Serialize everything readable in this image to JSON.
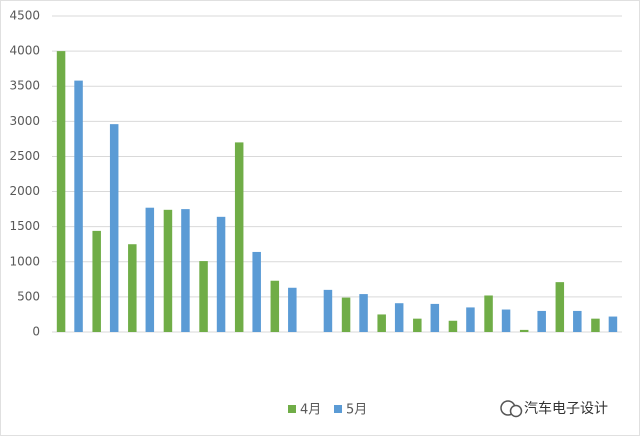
{
  "chart_data": {
    "type": "bar",
    "categories": [
      null,
      null,
      null,
      null,
      null,
      null,
      null,
      null,
      null,
      null,
      null,
      null,
      null,
      null,
      null,
      null
    ],
    "series": [
      {
        "name": "4月",
        "color": "#70ad47",
        "values": [
          4000,
          1440,
          1250,
          1740,
          1010,
          2700,
          730,
          null,
          490,
          250,
          190,
          160,
          520,
          30,
          710,
          190
        ]
      },
      {
        "name": "5月",
        "color": "#5b9bd5",
        "values": [
          3580,
          2960,
          1770,
          1750,
          1640,
          1140,
          630,
          600,
          540,
          410,
          400,
          350,
          320,
          300,
          300,
          220
        ]
      }
    ],
    "ylim": [
      0,
      4500
    ],
    "yticks": [
      0,
      500,
      1000,
      1500,
      2000,
      2500,
      3000,
      3500,
      4000,
      4500
    ],
    "grid": true,
    "legend": "bottom",
    "watermark": "汽车电子设计"
  }
}
